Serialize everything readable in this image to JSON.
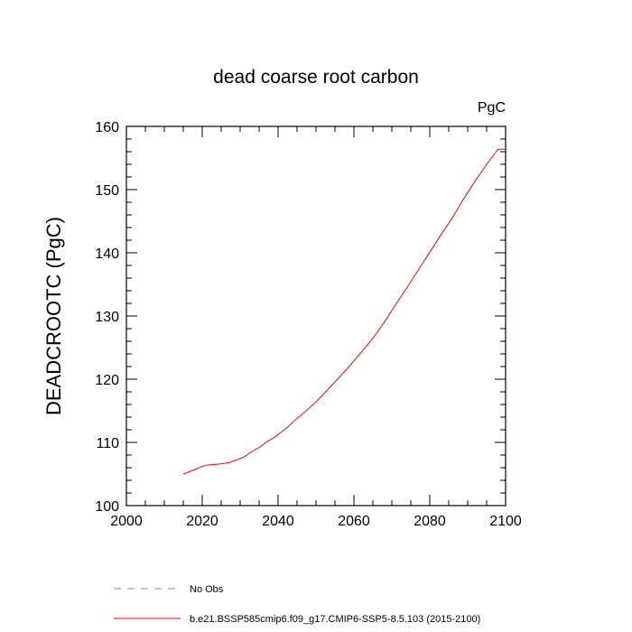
{
  "chart_data": {
    "type": "line",
    "title": "dead coarse root carbon",
    "units_label": "PgC",
    "ylabel": "DEADCROOTC  (PgC)",
    "xlabel": "",
    "xlim": [
      2000,
      2100
    ],
    "ylim": [
      100,
      160
    ],
    "x_ticks": [
      2000,
      2020,
      2040,
      2060,
      2080,
      2100
    ],
    "y_ticks": [
      100,
      110,
      120,
      130,
      140,
      150,
      160
    ],
    "grid": false,
    "legend_position": "bottom-left",
    "series": [
      {
        "name": "b.e21.BSSP585cmip6.f09_g17.CMIP6-SSP5-8.5.103 (2015-2100)",
        "color": "#ff0000",
        "style": "solid",
        "x": [
          2015,
          2018,
          2020,
          2021,
          2023,
          2025,
          2027,
          2029,
          2031,
          2033,
          2035,
          2037,
          2039,
          2041,
          2043,
          2045,
          2047,
          2050,
          2053,
          2056,
          2059,
          2062,
          2065,
          2068,
          2071,
          2074,
          2077,
          2080,
          2083,
          2086,
          2089,
          2092,
          2095,
          2098,
          2100
        ],
        "values": [
          105.0,
          105.7,
          106.2,
          106.4,
          106.5,
          106.6,
          106.8,
          107.2,
          107.7,
          108.5,
          109.2,
          110.1,
          110.8,
          111.7,
          112.7,
          113.8,
          114.8,
          116.4,
          118.3,
          120.2,
          122.2,
          124.3,
          126.5,
          129.0,
          131.8,
          134.5,
          137.3,
          140.1,
          142.9,
          145.6,
          148.6,
          151.4,
          154.0,
          156.4,
          156.4
        ]
      }
    ],
    "legend": [
      {
        "label": "No Obs",
        "color": "#8080ff",
        "style": "dashed"
      },
      {
        "label": "b.e21.BSSP585cmip6.f09_g17.CMIP6-SSP5-8.5.103 (2015-2100)",
        "color": "#ff0000",
        "style": "solid"
      }
    ]
  }
}
